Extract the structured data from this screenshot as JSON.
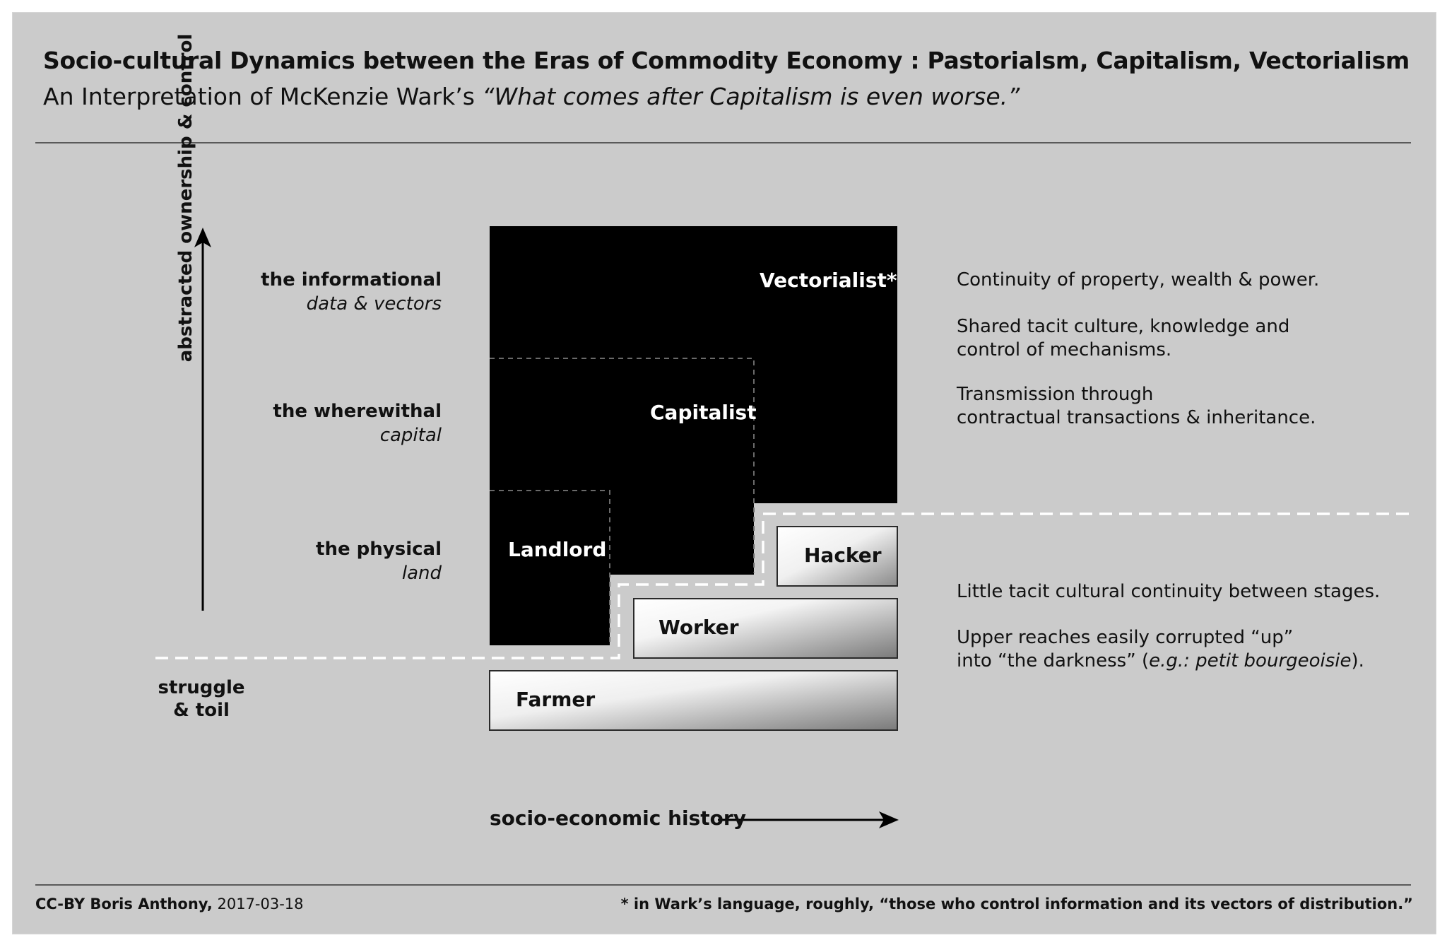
{
  "header": {
    "title": "Socio-cultural Dynamics between the Eras of Commodity Economy : Pastorialsm, Capitalism, Vectorialism",
    "subtitle_prefix": "An Interpretation of McKenzie Wark’s",
    "subtitle_quote": "“What comes after Capitalism is even worse.”"
  },
  "axes": {
    "y_label": "abstracted ownership & control",
    "x_label": "socio-economic history"
  },
  "levels": [
    {
      "title": "the informational",
      "subtitle": "data & vectors"
    },
    {
      "title": "the wherewithal",
      "subtitle": "capital"
    },
    {
      "title": "the physical",
      "subtitle": "land"
    }
  ],
  "struggle_label": {
    "line1": "struggle",
    "line2": "& toil"
  },
  "ruling_classes": {
    "vectorialist": "Vectorialist*",
    "capitalist": "Capitalist",
    "landlord": "Landlord"
  },
  "working_classes": {
    "hacker": "Hacker",
    "worker": "Worker",
    "farmer": "Farmer"
  },
  "descriptions": {
    "upper": {
      "p1": "Continuity of property, wealth & power.",
      "p2_line1": "Shared tacit culture, knowledge and",
      "p2_line2": "control of mechanisms.",
      "p3_line1": "Transmission through",
      "p3_line2": "contractual transactions & inheritance."
    },
    "lower": {
      "p1": "Little tacit cultural continuity between stages.",
      "p2_line1": "Upper reaches easily corrupted “up”",
      "p2_line2_a": "into “the darkness” (",
      "p2_line2_b": "e.g.:",
      "p2_line2_c": " ",
      "p2_line2_d": "petit bourgeoisie",
      "p2_line2_e": ")."
    }
  },
  "footer": {
    "credit_bold": "CC-BY Boris Anthony,",
    "credit_date": " 2017-03-18",
    "footnote": "* in Wark’s language, roughly, “those who control information and its vectors of distribution.”"
  },
  "colors": {
    "background": "#cbcbcb",
    "ruling_fill": "#000000",
    "divider": "#ffffff"
  }
}
